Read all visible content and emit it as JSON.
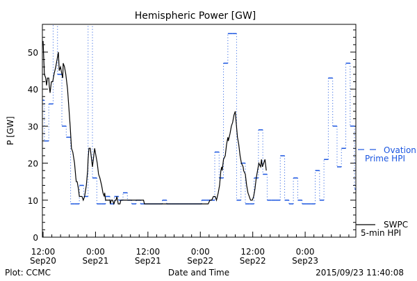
{
  "chart_data": {
    "type": "line",
    "title": "Hemispheric Power [GW]",
    "xlabel": "Date and Time",
    "ylabel": "P [GW]",
    "x_units": "hours since 2015-09-20 12:00",
    "xlim": [
      0,
      71.6
    ],
    "ylim": [
      0,
      57.5
    ],
    "yticks": [
      0,
      10,
      20,
      30,
      40,
      50
    ],
    "xticks": [
      {
        "hour": 0,
        "time": "12:00",
        "date": "Sep20"
      },
      {
        "hour": 12,
        "time": "0:00",
        "date": "Sep21"
      },
      {
        "hour": 24,
        "time": "12:00",
        "date": "Sep21"
      },
      {
        "hour": 36,
        "time": "0:00",
        "date": "Sep22"
      },
      {
        "hour": 48,
        "time": "12:00",
        "date": "Sep22"
      },
      {
        "hour": 60,
        "time": "0:00",
        "date": "Sep23"
      }
    ],
    "legend": [
      {
        "line1": "Ovation",
        "line2": "Prime HPI",
        "color": "#1a55e0",
        "style": "dashed-step"
      },
      {
        "line1": "SWPC",
        "line2": "5-min HPI",
        "color": "#000000",
        "style": "solid"
      }
    ],
    "series": [
      {
        "name": "Ovation Prime HPI",
        "color": "#1a55e0",
        "step_start_hour": -0.7,
        "step_hours": 1,
        "values": [
          37,
          26,
          36,
          60,
          44,
          30,
          27,
          9,
          9,
          14,
          11,
          60,
          16,
          9,
          9,
          11,
          9,
          11,
          10,
          12,
          10,
          9,
          10,
          9,
          9,
          9,
          9,
          9,
          10,
          9,
          9,
          9,
          9,
          9,
          9,
          9,
          9,
          10,
          10,
          10,
          23,
          16,
          47,
          55,
          55,
          10,
          20,
          9,
          9,
          16,
          29,
          17,
          10,
          10,
          10,
          22,
          10,
          9,
          16,
          10,
          9,
          9,
          9,
          18,
          10,
          21,
          43,
          30,
          19,
          24,
          47,
          30,
          13
        ]
      },
      {
        "name": "SWPC 5-min HPI",
        "color": "#000000",
        "points": [
          [
            0,
            53
          ],
          [
            0.3,
            44
          ],
          [
            0.6,
            43
          ],
          [
            0.8,
            41
          ],
          [
            1.0,
            43
          ],
          [
            1.3,
            43
          ],
          [
            1.4,
            41
          ],
          [
            1.6,
            39
          ],
          [
            1.9,
            42
          ],
          [
            2.2,
            42
          ],
          [
            2.5,
            44
          ],
          [
            2.9,
            46
          ],
          [
            3.2,
            48
          ],
          [
            3.5,
            50
          ],
          [
            3.7,
            45
          ],
          [
            4.0,
            46
          ],
          [
            4.3,
            44
          ],
          [
            4.5,
            43
          ],
          [
            4.6,
            47
          ],
          [
            4.9,
            46
          ],
          [
            5.2,
            44
          ],
          [
            5.6,
            40
          ],
          [
            5.9,
            35
          ],
          [
            6.2,
            30
          ],
          [
            6.5,
            24
          ],
          [
            6.8,
            23
          ],
          [
            7.2,
            20
          ],
          [
            7.5,
            16
          ],
          [
            7.6,
            15
          ],
          [
            7.8,
            15
          ],
          [
            8.1,
            13
          ],
          [
            8.3,
            11
          ],
          [
            8.6,
            11
          ],
          [
            8.9,
            11
          ],
          [
            9.2,
            10
          ],
          [
            9.5,
            11
          ],
          [
            9.9,
            14
          ],
          [
            10.2,
            18
          ],
          [
            10.3,
            21
          ],
          [
            10.5,
            24
          ],
          [
            10.8,
            24
          ],
          [
            11.1,
            21
          ],
          [
            11.3,
            19
          ],
          [
            11.6,
            22
          ],
          [
            11.8,
            24
          ],
          [
            12.1,
            22
          ],
          [
            12.4,
            20
          ],
          [
            12.7,
            17
          ],
          [
            13.0,
            16
          ],
          [
            13.4,
            14
          ],
          [
            13.7,
            12
          ],
          [
            14.0,
            11
          ],
          [
            14.1,
            12
          ],
          [
            14.3,
            10
          ],
          [
            14.8,
            10
          ],
          [
            15.3,
            10
          ],
          [
            15.4,
            9
          ],
          [
            15.6,
            10
          ],
          [
            15.9,
            10
          ],
          [
            16.2,
            9
          ],
          [
            16.5,
            10
          ],
          [
            16.7,
            10
          ],
          [
            16.9,
            11
          ],
          [
            17.2,
            9
          ],
          [
            17.6,
            9
          ],
          [
            17.8,
            10
          ],
          [
            18.8,
            10
          ],
          [
            23.0,
            10
          ],
          [
            23.2,
            9
          ],
          [
            37.8,
            9
          ],
          [
            38.2,
            10
          ],
          [
            38.6,
            10
          ],
          [
            39.0,
            11
          ],
          [
            39.4,
            11
          ],
          [
            39.7,
            10
          ],
          [
            40.1,
            12
          ],
          [
            40.4,
            14
          ],
          [
            40.7,
            18
          ],
          [
            40.9,
            19
          ],
          [
            41.0,
            18
          ],
          [
            41.3,
            21
          ],
          [
            41.7,
            22
          ],
          [
            42.0,
            25
          ],
          [
            42.3,
            27
          ],
          [
            42.4,
            26
          ],
          [
            42.8,
            28
          ],
          [
            43.1,
            30
          ],
          [
            43.4,
            31
          ],
          [
            43.7,
            33
          ],
          [
            44.0,
            34
          ],
          [
            44.2,
            31
          ],
          [
            44.5,
            27
          ],
          [
            44.8,
            25
          ],
          [
            45.1,
            22
          ],
          [
            45.4,
            20
          ],
          [
            45.8,
            19
          ],
          [
            45.9,
            18
          ],
          [
            46.3,
            17
          ],
          [
            46.6,
            14
          ],
          [
            46.9,
            12
          ],
          [
            47.2,
            11
          ],
          [
            47.5,
            10
          ],
          [
            47.9,
            10
          ],
          [
            48.2,
            11
          ],
          [
            48.5,
            13
          ],
          [
            48.8,
            16
          ],
          [
            49.1,
            18
          ],
          [
            49.4,
            20
          ],
          [
            49.8,
            19
          ],
          [
            50.0,
            21
          ],
          [
            50.2,
            19
          ],
          [
            50.5,
            20
          ],
          [
            50.8,
            21
          ],
          [
            51.1,
            18
          ]
        ]
      }
    ]
  },
  "footer": {
    "left": "Plot: CCMC",
    "right": "2015/09/23 11:40:08"
  }
}
